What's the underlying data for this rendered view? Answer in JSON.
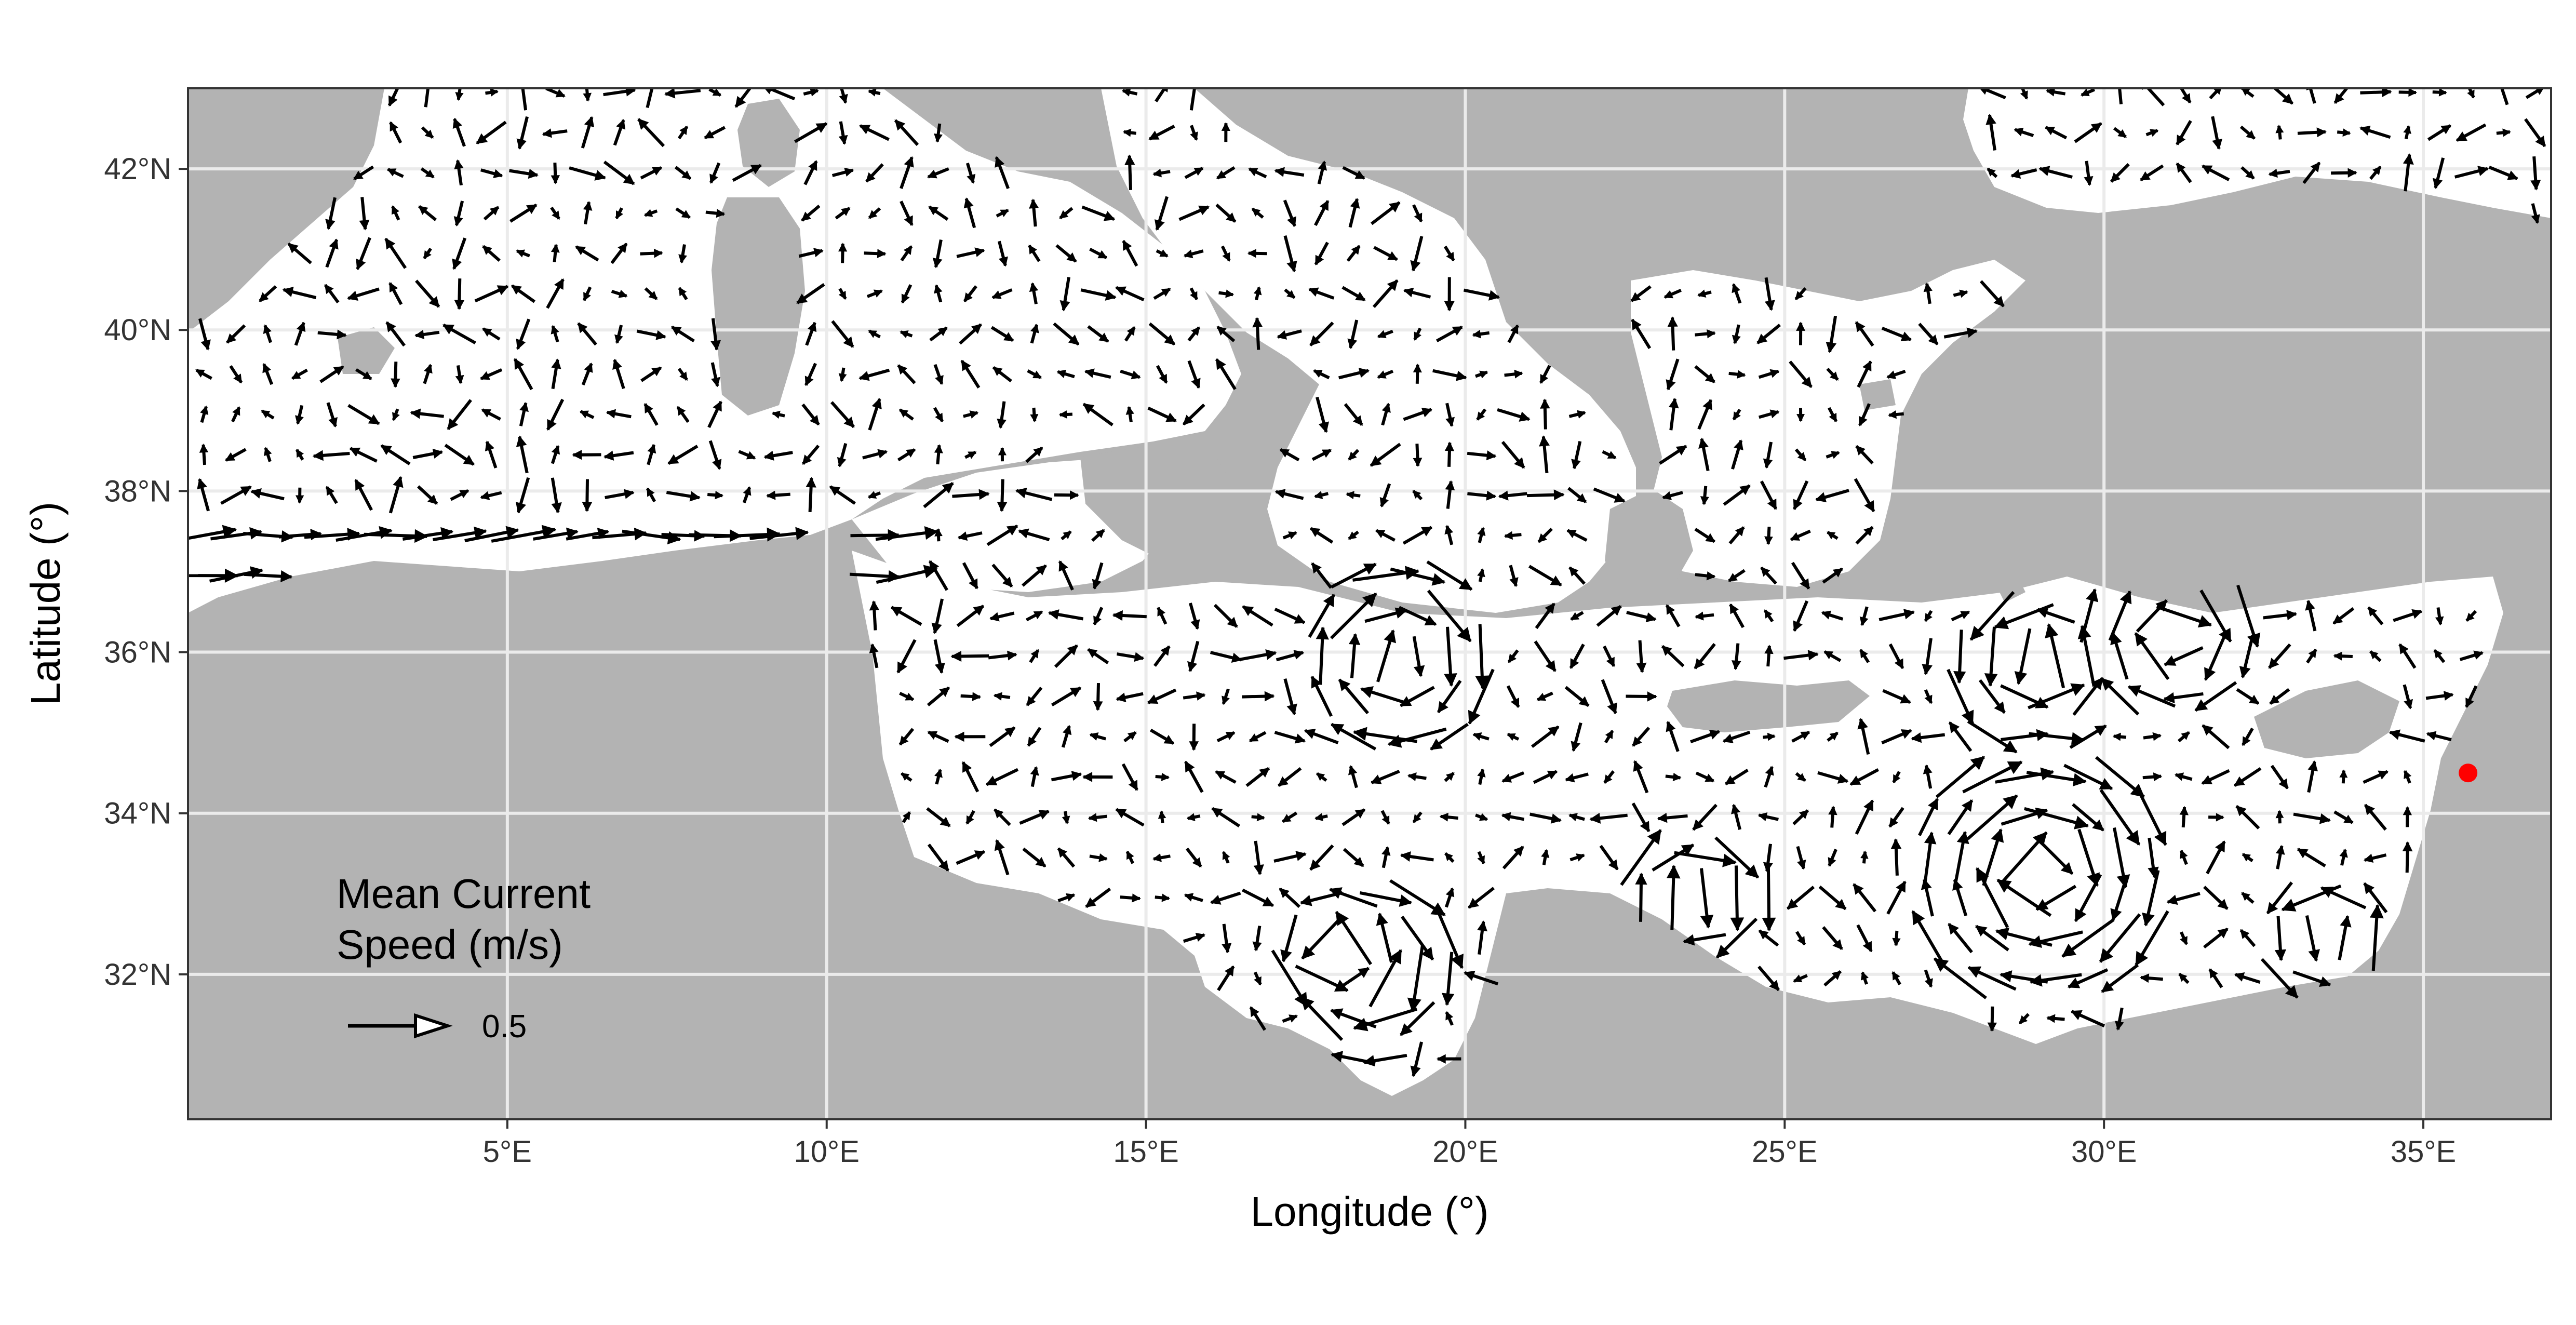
{
  "map": {
    "x_axis": {
      "title": "Longitude (°)",
      "ticks": [
        {
          "value": 5,
          "label": "5°E"
        },
        {
          "value": 10,
          "label": "10°E"
        },
        {
          "value": 15,
          "label": "15°E"
        },
        {
          "value": 20,
          "label": "20°E"
        },
        {
          "value": 25,
          "label": "25°E"
        },
        {
          "value": 30,
          "label": "30°E"
        },
        {
          "value": 35,
          "label": "35°E"
        }
      ],
      "range": [
        0,
        37
      ]
    },
    "y_axis": {
      "title": "Latitude (°)",
      "ticks": [
        {
          "value": 32,
          "label": "32°N"
        },
        {
          "value": 34,
          "label": "34°N"
        },
        {
          "value": 36,
          "label": "36°N"
        },
        {
          "value": 38,
          "label": "38°N"
        },
        {
          "value": 40,
          "label": "40°N"
        },
        {
          "value": 42,
          "label": "42°N"
        }
      ],
      "range": [
        30.2,
        43
      ]
    },
    "legend": {
      "title_line1": "Mean Current",
      "title_line2": "Speed (m/s)",
      "reference_label": "0.5",
      "reference_speed": 0.5
    },
    "marker": {
      "lon": 35.7,
      "lat": 34.5,
      "color": "#ff0000"
    },
    "colors": {
      "land": "#b3b3b3",
      "sea": "#ffffff",
      "grid": "#ebebeb",
      "arrow": "#000000",
      "panel_border": "#333333"
    },
    "grid_spacing_deg": 0.5
  }
}
